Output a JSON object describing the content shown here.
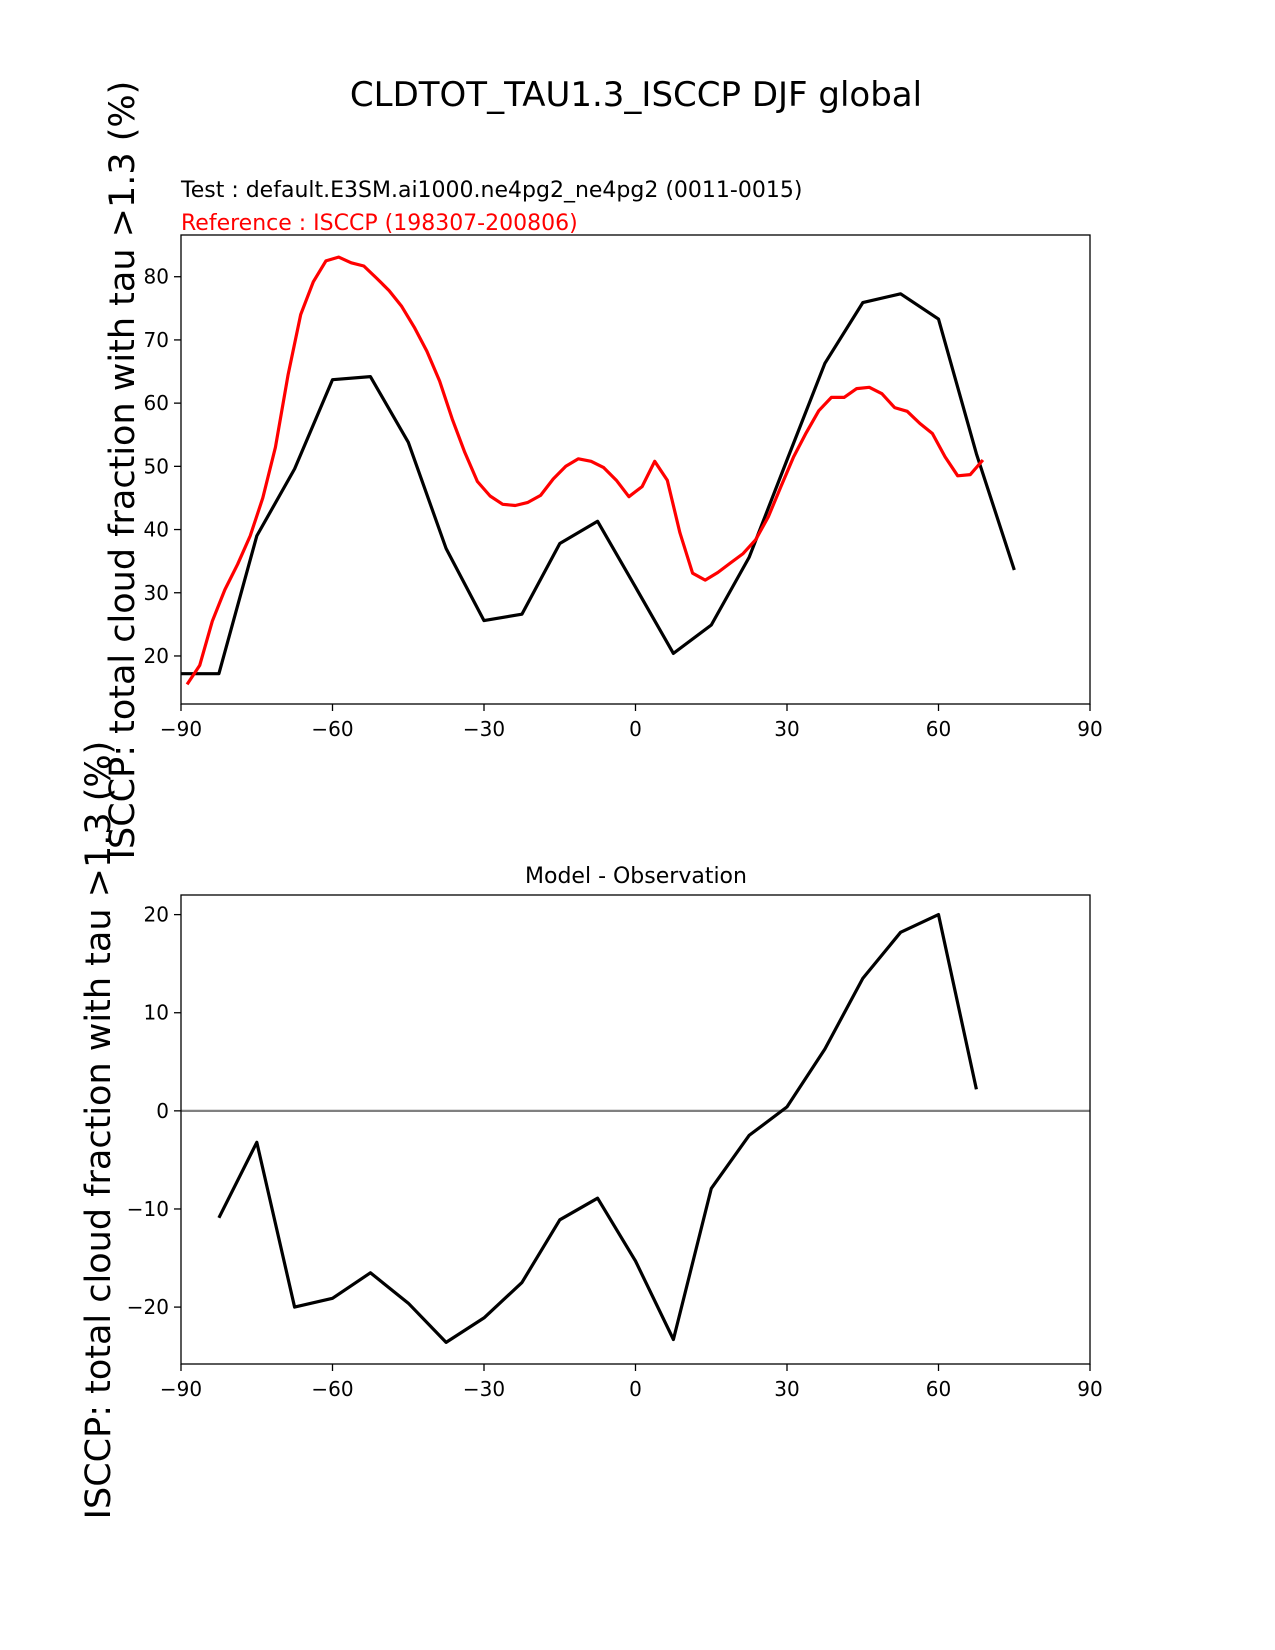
{
  "chart_data": [
    {
      "type": "line",
      "title": "CLDTOT_TAU1.3_ISCCP DJF global",
      "test_label": "Test : default.E3SM.ai1000.ne4pg2_ne4pg2 (0011-0015)",
      "reference_label": "Reference : ISCCP (198307-200806)",
      "ylabel": "ISCCP: total cloud fraction with tau >1.3 (%)",
      "xlabel": "",
      "xlim": [
        -90,
        90
      ],
      "ylim": [
        12.4,
        86.6
      ],
      "xticks": [
        -90,
        -60,
        -30,
        0,
        30,
        60,
        90
      ],
      "xtick_labels": [
        "−90",
        "−60",
        "−30",
        "0",
        "30",
        "60",
        "90"
      ],
      "yticks": [
        20,
        30,
        40,
        50,
        60,
        70,
        80
      ],
      "grid": false,
      "series": [
        {
          "name": "Test",
          "color": "#000000",
          "x": [
            -90,
            -82.5,
            -75,
            -67.5,
            -60,
            -52.5,
            -45,
            -37.5,
            -30,
            -22.5,
            -15,
            -7.5,
            0,
            7.5,
            15,
            22.5,
            30,
            37.5,
            45,
            52.5,
            60,
            67.5,
            75
          ],
          "y": [
            17.2,
            17.2,
            39,
            49.6,
            63.7,
            64.2,
            53.8,
            37,
            25.6,
            26.6,
            37.8,
            41.3,
            30.9,
            20.4,
            24.9,
            35.6,
            51,
            66.3,
            75.9,
            77.3,
            73.3,
            52,
            33.6
          ]
        },
        {
          "name": "Reference",
          "color": "#ff0000",
          "x": [
            -88.8,
            -86.3,
            -83.8,
            -81.3,
            -78.8,
            -76.3,
            -73.8,
            -71.3,
            -68.8,
            -66.3,
            -63.8,
            -61.3,
            -58.8,
            -56.3,
            -53.8,
            -51.3,
            -48.8,
            -46.3,
            -43.8,
            -41.3,
            -38.8,
            -36.3,
            -33.8,
            -31.3,
            -28.8,
            -26.3,
            -23.8,
            -21.3,
            -18.8,
            -16.3,
            -13.8,
            -11.3,
            -8.8,
            -6.3,
            -3.8,
            -1.3,
            1.3,
            3.8,
            6.3,
            8.8,
            11.3,
            13.8,
            16.3,
            18.8,
            21.3,
            23.8,
            26.3,
            28.8,
            31.3,
            33.8,
            36.3,
            38.8,
            41.3,
            43.8,
            46.3,
            48.8,
            51.3,
            53.8,
            56.3,
            58.8,
            61.3,
            63.8,
            66.3,
            68.8
          ],
          "y": [
            15.5,
            18.5,
            25.5,
            30.5,
            34.5,
            39,
            45,
            53,
            64.5,
            74,
            79.2,
            82.5,
            83.1,
            82.2,
            81.7,
            79.8,
            77.8,
            75.3,
            72,
            68.2,
            63.5,
            57.5,
            52.2,
            47.6,
            45.3,
            44,
            43.8,
            44.3,
            45.4,
            48,
            50,
            51.2,
            50.8,
            49.8,
            47.8,
            45.2,
            46.8,
            50.8,
            47.8,
            39.5,
            33.1,
            32,
            33.2,
            34.7,
            36.2,
            38.4,
            42,
            46.8,
            51.5,
            55.3,
            58.8,
            60.9,
            60.9,
            62.3,
            62.5,
            61.5,
            59.3,
            58.7,
            56.8,
            55.2,
            51.5,
            48.5,
            48.7,
            51
          ]
        }
      ]
    },
    {
      "type": "line",
      "title": "Model - Observation",
      "ylabel": "ISCCP: total cloud fraction with tau >1.3 (%)",
      "xlim": [
        -90,
        90
      ],
      "ylim": [
        -25.8,
        22.0
      ],
      "xticks": [
        -90,
        -60,
        -30,
        0,
        30,
        60,
        90
      ],
      "xtick_labels": [
        "−90",
        "−60",
        "−30",
        "0",
        "30",
        "60",
        "90"
      ],
      "yticks": [
        -20,
        -10,
        0,
        10,
        20
      ],
      "ytick_labels": [
        "−20",
        "−10",
        "0",
        "10",
        "20"
      ],
      "zero_line_color": "#808080",
      "grid": false,
      "series": [
        {
          "name": "Difference",
          "color": "#000000",
          "x": [
            -82.5,
            -75,
            -67.5,
            -60,
            -52.5,
            -45,
            -37.5,
            -30,
            -22.5,
            -15,
            -7.5,
            0,
            7.5,
            15,
            22.5,
            30,
            37.5,
            45,
            52.5,
            60,
            67.5
          ],
          "y": [
            -10.9,
            -3.2,
            -20,
            -19.1,
            -16.5,
            -19.6,
            -23.6,
            -21.1,
            -17.5,
            -11.1,
            -8.9,
            -15.3,
            -23.3,
            -7.9,
            -2.5,
            0.4,
            6.3,
            13.5,
            18.2,
            20,
            2.2
          ]
        }
      ]
    }
  ]
}
